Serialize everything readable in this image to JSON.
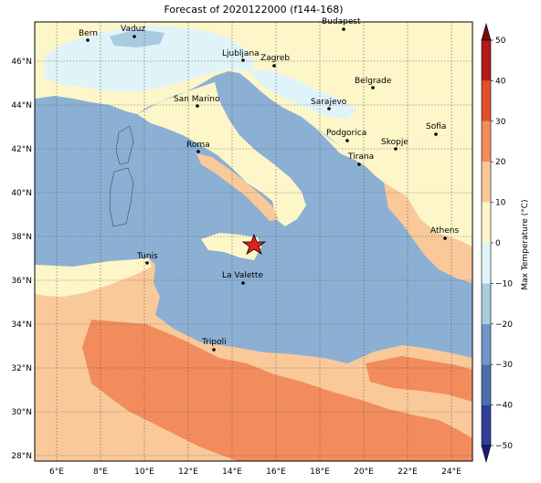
{
  "title": "Forecast of 2020122000 (f144-168)",
  "colorbar": {
    "label": "Max Temperature (°C)",
    "ticks": [
      "−50",
      "−40",
      "−30",
      "−20",
      "−10",
      "0",
      "10",
      "20",
      "30",
      "40",
      "50"
    ],
    "colors": [
      "#1a1a7a",
      "#2e3f9a",
      "#4a6fb0",
      "#6f98c8",
      "#a8cbe0",
      "#dff3f8",
      "#fdf6c8",
      "#f9c99a",
      "#f38c5c",
      "#e0502e",
      "#b31a1a",
      "#7a0a0a"
    ]
  },
  "axes": {
    "lon_labels": [
      "6°E",
      "8°E",
      "10°E",
      "12°E",
      "14°E",
      "16°E",
      "18°E",
      "20°E",
      "22°E",
      "24°E"
    ],
    "lat_labels": [
      "28°N",
      "30°N",
      "32°N",
      "34°N",
      "36°N",
      "38°N",
      "40°N",
      "42°N",
      "44°N",
      "46°N"
    ]
  },
  "cities": [
    {
      "name": "Bern"
    },
    {
      "name": "Vaduz"
    },
    {
      "name": "Budapest"
    },
    {
      "name": "Ljubljana"
    },
    {
      "name": "Zagreb"
    },
    {
      "name": "Belgrade"
    },
    {
      "name": "San Marino"
    },
    {
      "name": "Sarajevo"
    },
    {
      "name": "Podgorica"
    },
    {
      "name": "Sofia"
    },
    {
      "name": "Roma"
    },
    {
      "name": "Skopje"
    },
    {
      "name": "Tirana"
    },
    {
      "name": "Athens"
    },
    {
      "name": "Tunis"
    },
    {
      "name": "La Valette"
    },
    {
      "name": "Tripoli"
    }
  ],
  "marker": "star"
}
